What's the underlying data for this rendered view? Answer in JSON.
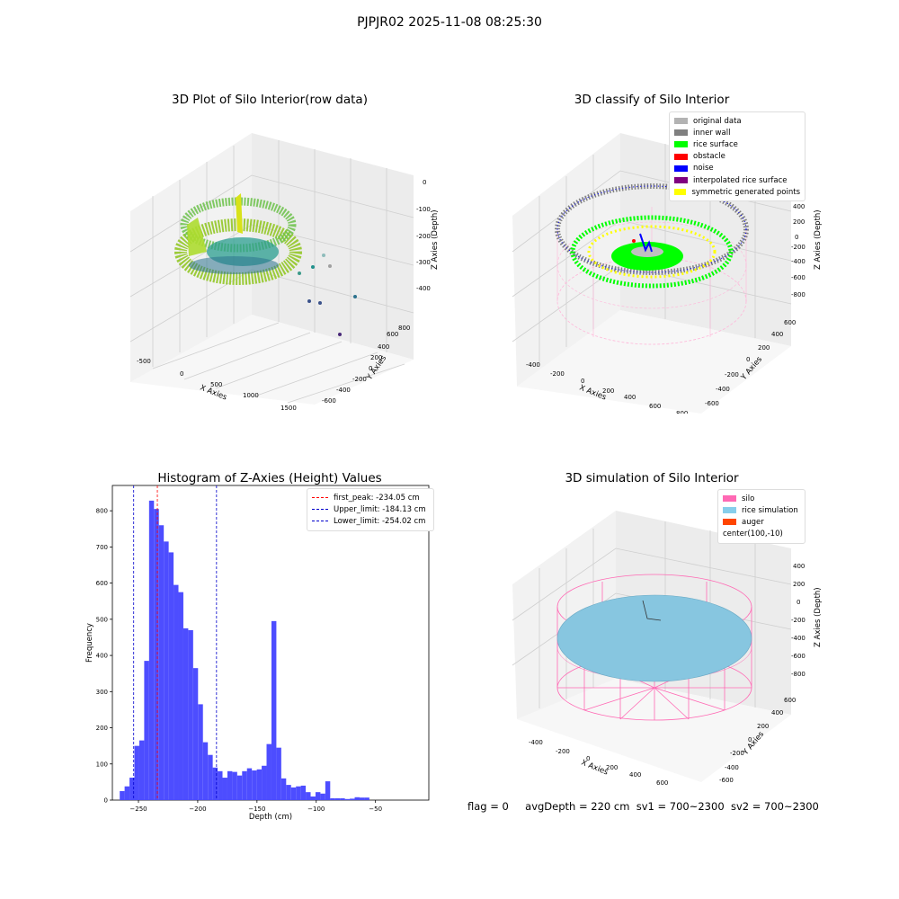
{
  "figure_title": "PJPJR02 2025-11-08 08:25:30",
  "colors": {
    "hist_bar": "#4d4dff",
    "peak_line": "#ff0000",
    "limit_line": "#0000cc",
    "viridis": [
      "#3b528b",
      "#21918c",
      "#5ec962",
      "#b5de2b",
      "#d8e219"
    ]
  },
  "footer": {
    "flag": "flag = 0",
    "avg_depth": "avgDepth = 220 cm",
    "sv1": "sv1 = 700~2300",
    "sv2": "sv2 = 700~2300"
  },
  "chart_data": [
    {
      "type": "scatter",
      "projection": "3d",
      "title": "3D Plot of Silo Interior(row data)",
      "xlabel": "X Axies",
      "ylabel": "Y Axies",
      "zlabel": "Z Axies (Depth)",
      "x_ticks": [
        "-500",
        "0",
        "500",
        "1000",
        "1500"
      ],
      "y_ticks": [
        "-600",
        "-400",
        "-200",
        "0",
        "200",
        "400",
        "600",
        "800"
      ],
      "z_ticks": [
        "0",
        "-100",
        "-200",
        "-300",
        "-400"
      ],
      "colormap": "viridis"
    },
    {
      "type": "scatter",
      "projection": "3d",
      "title": "3D classify of Silo Interior",
      "xlabel": "X Axies",
      "ylabel": "Y Axies",
      "zlabel": "Z Axies (Depth)",
      "x_ticks": [
        "-400",
        "-200",
        "0",
        "200",
        "400",
        "600",
        "800"
      ],
      "y_ticks": [
        "-600",
        "-400",
        "-200",
        "0",
        "200",
        "400",
        "600"
      ],
      "z_ticks": [
        "400",
        "200",
        "0",
        "-200",
        "-400",
        "-600",
        "-800"
      ],
      "legend_position": "top-right",
      "legend": [
        {
          "label": "original data",
          "color": "#b3b3b3"
        },
        {
          "label": "inner wall",
          "color": "#808080"
        },
        {
          "label": "rice surface",
          "color": "#00ff00"
        },
        {
          "label": "obstacle",
          "color": "#ff0000"
        },
        {
          "label": "noise",
          "color": "#0000ff"
        },
        {
          "label": "interpolated rice surface",
          "color": "#800080"
        },
        {
          "label": "symmetric generated points",
          "color": "#ffff00"
        }
      ]
    },
    {
      "type": "bar",
      "title": "Histogram of Z-Axies (Height) Values",
      "xlabel": "Depth (cm)",
      "ylabel": "Frequency",
      "xlim": [
        -272,
        -5
      ],
      "ylim": [
        0,
        870
      ],
      "x_ticks": [
        -250,
        -200,
        -150,
        -100,
        -50
      ],
      "y_ticks": [
        0,
        100,
        200,
        300,
        400,
        500,
        600,
        700,
        800
      ],
      "bin_edges_start": -265.8,
      "bin_width": 4.13,
      "values": [
        25,
        38,
        62,
        150,
        165,
        385,
        828,
        805,
        760,
        715,
        685,
        595,
        575,
        475,
        470,
        365,
        265,
        160,
        125,
        90,
        80,
        62,
        80,
        78,
        68,
        80,
        88,
        82,
        85,
        95,
        155,
        495,
        145,
        60,
        42,
        35,
        38,
        40,
        22,
        10,
        22,
        18,
        52,
        5,
        5,
        5,
        3,
        4,
        8,
        7,
        7
      ],
      "lines": [
        {
          "label": "first_peak: -234.05 cm",
          "x": -234.05,
          "color": "#ff0000"
        },
        {
          "label": "Upper_limit: -184.13 cm",
          "x": -184.13,
          "color": "#0000cc"
        },
        {
          "label": "Lower_limit: -254.02 cm",
          "x": -254.02,
          "color": "#0000cc"
        }
      ],
      "legend_position": "top-right"
    },
    {
      "type": "surface",
      "projection": "3d",
      "title": "3D simulation of Silo Interior",
      "xlabel": "X Axies",
      "ylabel": "Y Axies",
      "zlabel": "Z Axies (Depth)",
      "x_ticks": [
        "-400",
        "-200",
        "0",
        "200",
        "400",
        "600"
      ],
      "y_ticks": [
        "-600",
        "-400",
        "-200",
        "0",
        "200",
        "400",
        "600"
      ],
      "z_ticks": [
        "400",
        "200",
        "0",
        "-200",
        "-400",
        "-600",
        "-800"
      ],
      "legend_position": "top-right",
      "legend": [
        {
          "label": "silo",
          "color": "#ff69b4"
        },
        {
          "label": "rice simulation",
          "color": "#87ceeb"
        },
        {
          "label": "auger",
          "color": "#ff4500"
        },
        {
          "label": "center(100,-10)",
          "color": ""
        }
      ]
    }
  ]
}
